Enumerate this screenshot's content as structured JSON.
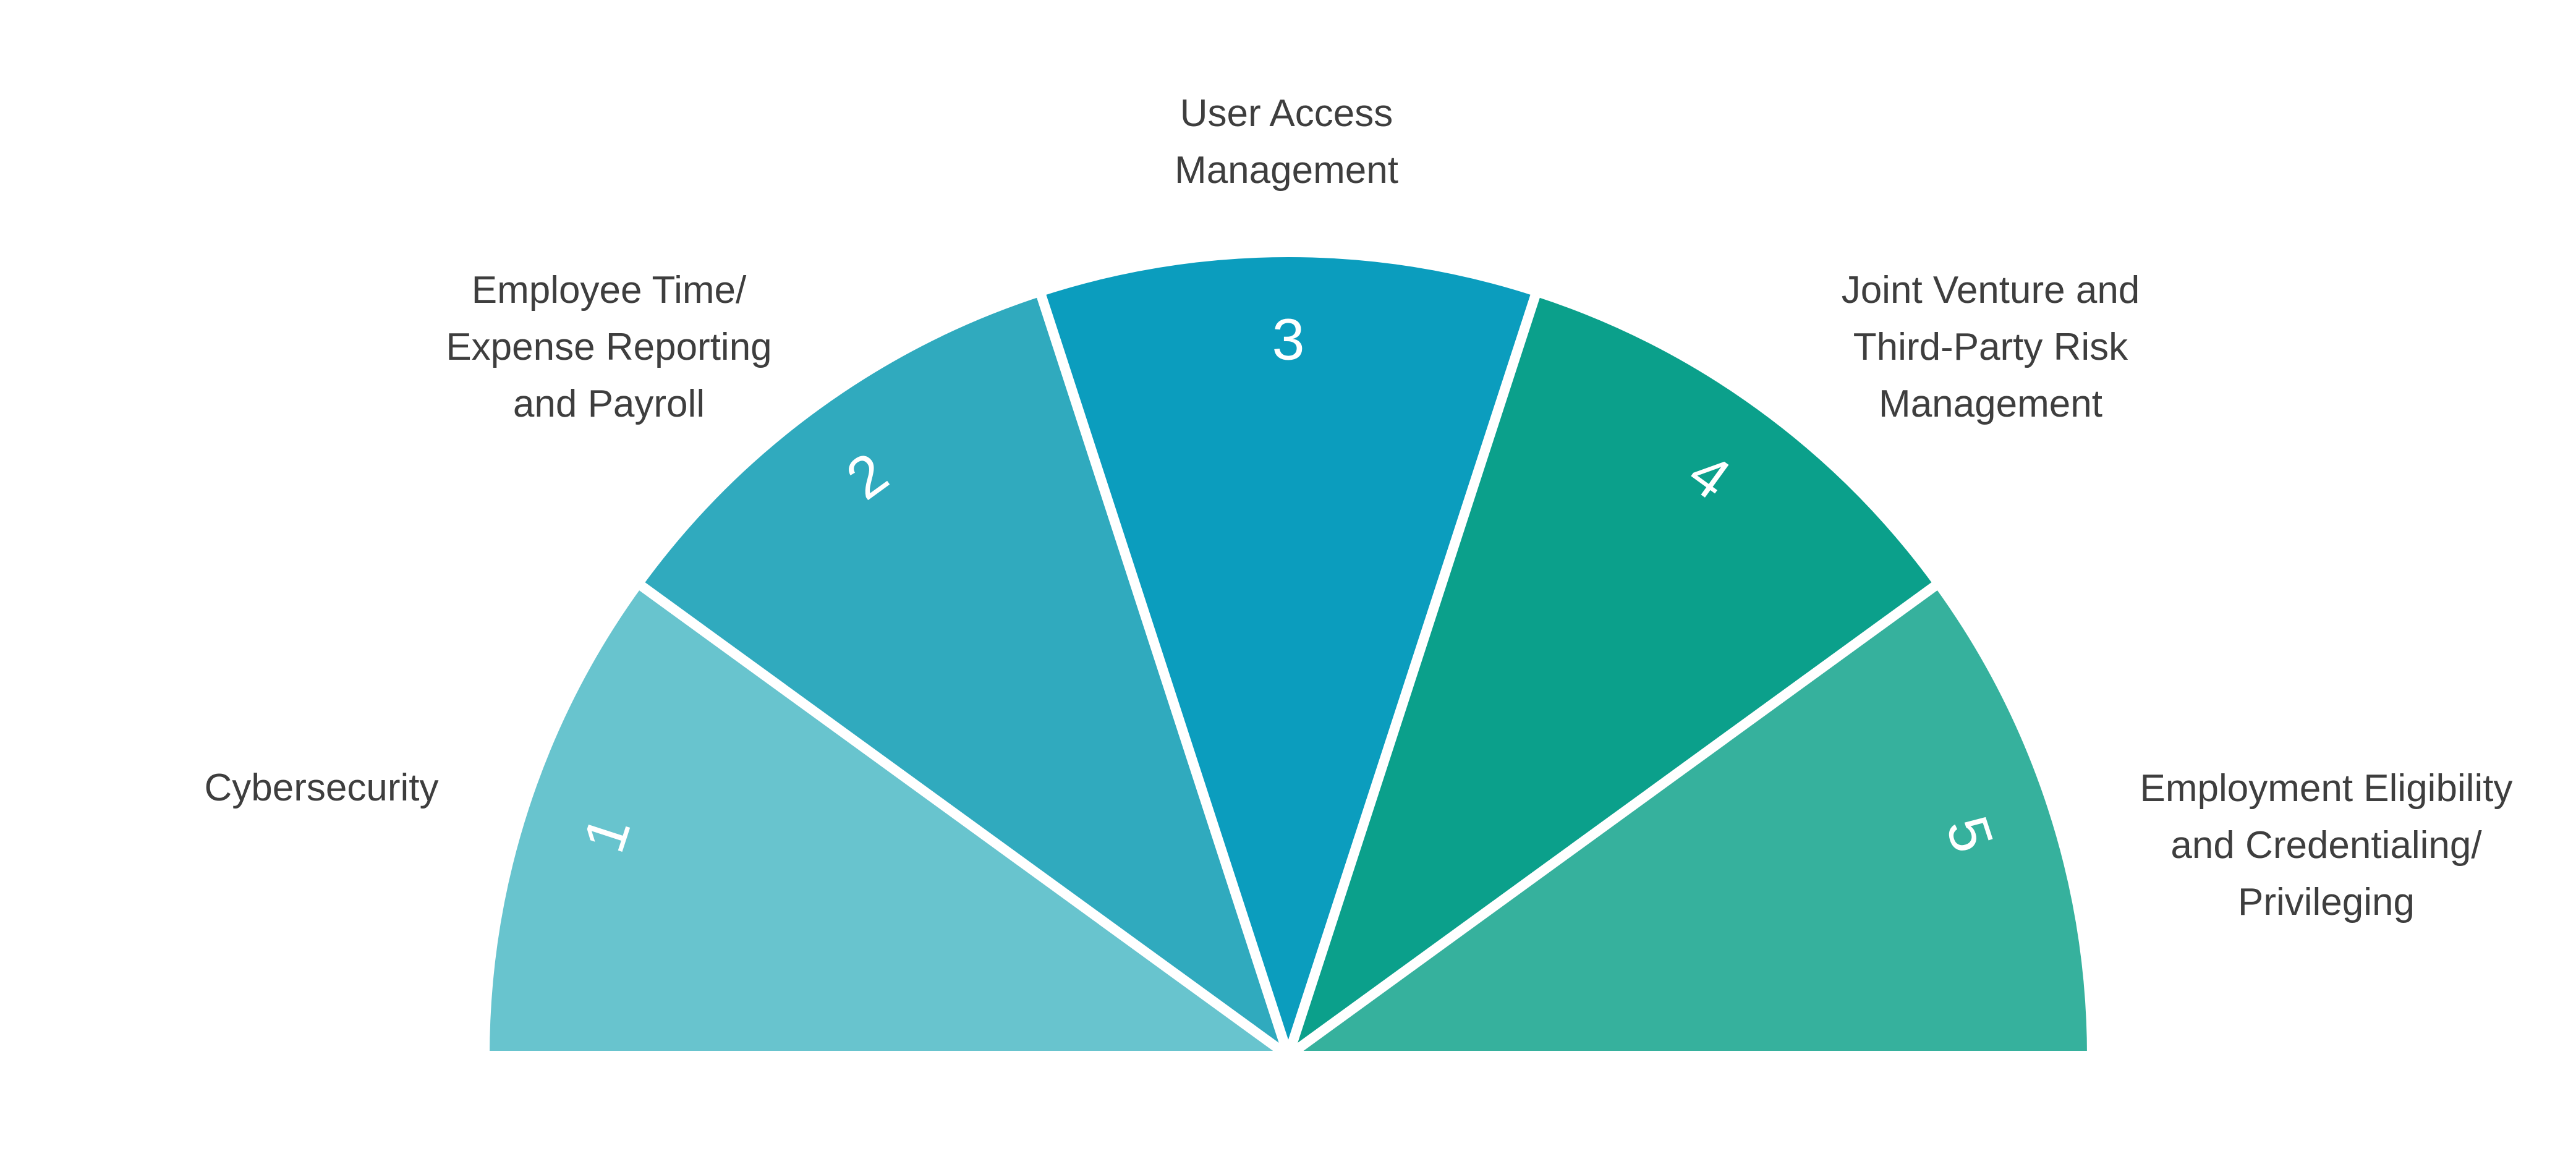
{
  "chart_data": {
    "type": "pie",
    "shape": "semicircle-fan",
    "title": "",
    "start_angle_deg": 180,
    "end_angle_deg": 0,
    "grid": false,
    "legend_position": "labels-around-arc",
    "background": "#FFFFFF",
    "divider_color": "#FFFFFF",
    "number_color": "#FFFFFF",
    "label_color": "#3E3E3E",
    "segments": [
      {
        "number": "1",
        "label": "Cybersecurity",
        "color": "#68C4CE",
        "value_deg": 36
      },
      {
        "number": "2",
        "label": "Employee Time/Expense Reporting and Payroll",
        "color": "#30AABE",
        "value_deg": 36
      },
      {
        "number": "3",
        "label": "User Access Management",
        "color": "#0B9DBE",
        "value_deg": 36
      },
      {
        "number": "4",
        "label": "Joint Venture and Third-Party Risk Management",
        "color": "#0BA08B",
        "value_deg": 36
      },
      {
        "number": "5",
        "label": "Employment Eligibility and Credentialing/Privileging",
        "color": "#36B19D",
        "value_deg": 36
      }
    ]
  },
  "labels": {
    "l1": {
      "lines": [
        "Cybersecurity"
      ]
    },
    "l2": {
      "lines": [
        "Employee Time/",
        "Expense Reporting",
        "and Payroll"
      ]
    },
    "l3": {
      "lines": [
        "User Access",
        "Management"
      ]
    },
    "l4": {
      "lines": [
        "Joint Venture and",
        "Third-Party Risk",
        "Management"
      ]
    },
    "l5": {
      "lines": [
        "Employment Eligibility",
        "and Credentialing/",
        "Privileging"
      ]
    }
  }
}
